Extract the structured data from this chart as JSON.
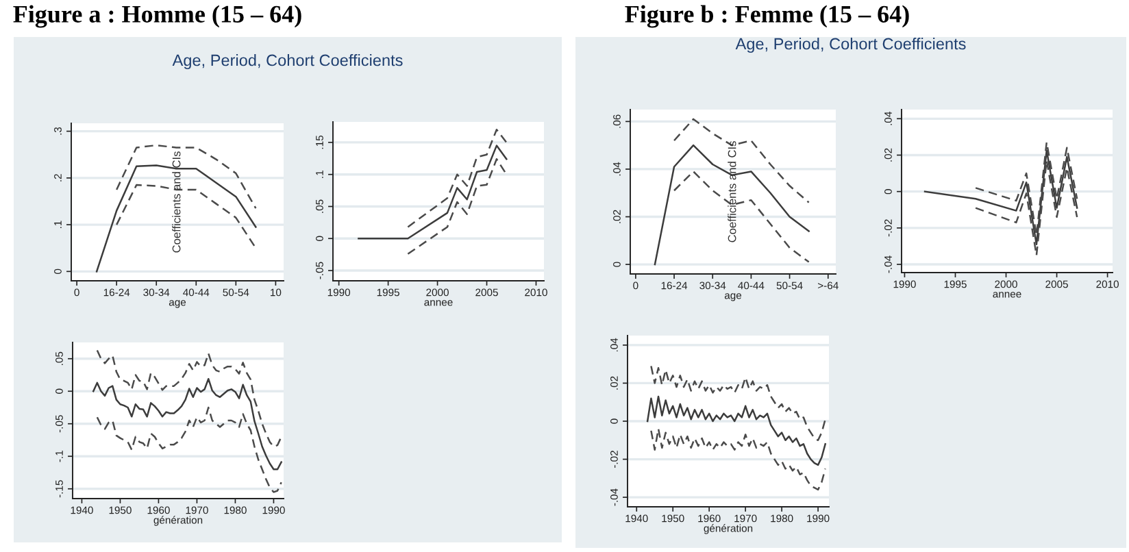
{
  "chart_data": [
    {
      "type": "line",
      "title": "Figure a : Homme (15 – 64)",
      "subtitle": "Age, Period, Cohort Coefficients",
      "xlabel": "age",
      "annotations": [
        "Coefficients and CIs"
      ],
      "grid": "y",
      "categories": [
        "0",
        null,
        "16-24",
        null,
        "30-34",
        null,
        "40-44",
        null,
        "50-54",
        null,
        "10"
      ],
      "ylim": [
        -0.02,
        0.317
      ],
      "yticks": [
        0,
        {
          "value": 0.1,
          "label": ".1"
        },
        {
          "value": 0.2,
          "label": ".2"
        },
        {
          "value": 0.3,
          "label": ".3"
        }
      ],
      "series": [
        {
          "color": "#3c3c3c",
          "line_style": "solid",
          "values": [
            null,
            0,
            0.13,
            0.225,
            0.227,
            0.22,
            0.22,
            0.19,
            0.16,
            0.095,
            null
          ]
        },
        {
          "color": "#4a4a4a",
          "line_style": "dashed",
          "values": [
            null,
            null,
            0.175,
            0.265,
            0.27,
            0.265,
            0.265,
            0.24,
            0.21,
            0.135,
            null
          ]
        },
        {
          "color": "#4a4a4a",
          "line_style": "dashed",
          "values": [
            null,
            null,
            0.1,
            0.185,
            0.183,
            0.175,
            0.175,
            0.145,
            0.115,
            0.05,
            null
          ]
        }
      ]
    },
    {
      "type": "line",
      "xlabel": "annee",
      "grid": "y",
      "xlim": [
        1989.4,
        2010.8
      ],
      "xticks": [
        1990,
        1995,
        2000,
        2005,
        2010
      ],
      "ylim": [
        -0.066,
        0.182
      ],
      "yticks": [
        {
          "value": -0.05,
          "label": "-.05"
        },
        0,
        {
          "value": 0.05,
          "label": ".05"
        },
        {
          "value": 0.1,
          "label": ".1"
        },
        {
          "value": 0.15,
          "label": ".15"
        }
      ],
      "series": [
        {
          "color": "#3c3c3c",
          "line_style": "solid",
          "x": [
            1992,
            1997,
            2001,
            2002,
            2003,
            2004,
            2005,
            2006,
            2007
          ],
          "values": [
            0,
            0,
            0.04,
            0.079,
            0.061,
            0.104,
            0.107,
            0.145,
            0.124
          ]
        },
        {
          "color": "#4a4a4a",
          "line_style": "dashed",
          "x": [
            1997,
            2001,
            2002,
            2003,
            2004,
            2005,
            2006,
            2007
          ],
          "values": [
            0.018,
            0.063,
            0.1,
            0.082,
            0.127,
            0.131,
            0.17,
            0.15
          ]
        },
        {
          "color": "#4a4a4a",
          "line_style": "dashed",
          "x": [
            1997,
            2001,
            2002,
            2003,
            2004,
            2005,
            2006,
            2007
          ],
          "values": [
            -0.024,
            0.018,
            0.057,
            0.038,
            0.082,
            0.084,
            0.124,
            0.1
          ]
        }
      ]
    },
    {
      "type": "line",
      "xlabel": "génération",
      "grid": "y",
      "xlim": [
        1937.6,
        1992.6
      ],
      "xticks": [
        1940,
        1950,
        1960,
        1970,
        1980,
        1990
      ],
      "ylim": [
        -0.165,
        0.075
      ],
      "yticks": [
        {
          "value": -0.15,
          "label": "-.15"
        },
        {
          "value": -0.1,
          "label": "-.1"
        },
        {
          "value": -0.05,
          "label": "-.05"
        },
        0,
        {
          "value": 0.05,
          "label": ".05"
        }
      ],
      "series": [
        {
          "color": "#3c3c3c",
          "line_style": "solid",
          "x": [
            1943,
            1944,
            1945,
            1946,
            1947,
            1948,
            1949,
            1950,
            1951,
            1952,
            1953,
            1954,
            1955,
            1956,
            1957,
            1958,
            1959,
            1960,
            1961,
            1962,
            1963,
            1964,
            1965,
            1966,
            1967,
            1968,
            1969,
            1970,
            1971,
            1972,
            1973,
            1974,
            1975,
            1976,
            1977,
            1978,
            1979,
            1980,
            1981,
            1982,
            1983,
            1984,
            1985,
            1986,
            1987,
            1988,
            1989,
            1990,
            1991,
            1992
          ],
          "values": [
            0,
            0.013,
            0,
            -0.007,
            0.005,
            0.008,
            -0.013,
            -0.02,
            -0.022,
            -0.025,
            -0.039,
            -0.02,
            -0.027,
            -0.028,
            -0.039,
            -0.018,
            -0.023,
            -0.03,
            -0.039,
            -0.032,
            -0.034,
            -0.034,
            -0.029,
            -0.023,
            -0.013,
            0.004,
            -0.009,
            0.005,
            -0.001,
            0.003,
            0.019,
            0.001,
            -0.006,
            -0.009,
            -0.004,
            0.001,
            0.003,
            -0.001,
            -0.011,
            0.01,
            -0.006,
            -0.016,
            -0.046,
            -0.065,
            -0.085,
            -0.099,
            -0.111,
            -0.12,
            -0.12,
            -0.109
          ]
        },
        {
          "color": "#4a4a4a",
          "line_style": "dashed",
          "x": [
            1944,
            1945,
            1946,
            1947,
            1948,
            1949,
            1950,
            1951,
            1952,
            1953,
            1954,
            1955,
            1956,
            1957,
            1958,
            1959,
            1960,
            1961,
            1962,
            1963,
            1964,
            1965,
            1966,
            1967,
            1968,
            1969,
            1970,
            1971,
            1972,
            1973,
            1974,
            1975,
            1976,
            1977,
            1978,
            1979,
            1980,
            1981,
            1982,
            1983,
            1984,
            1985,
            1986,
            1987,
            1988,
            1989,
            1990,
            1991,
            1992
          ],
          "values": [
            0.063,
            0.05,
            0.043,
            0.05,
            0.055,
            0.03,
            0.018,
            0.016,
            0.013,
            0.003,
            0.025,
            0.016,
            0.015,
            0.003,
            0.028,
            0.022,
            0.012,
            0.002,
            0.008,
            0.008,
            0.008,
            0.013,
            0.019,
            0.028,
            0.042,
            0.032,
            0.045,
            0.038,
            0.04,
            0.058,
            0.04,
            0.032,
            0.03,
            0.035,
            0.038,
            0.038,
            0.034,
            0.027,
            0.044,
            0.028,
            0.018,
            -0.013,
            -0.03,
            -0.05,
            -0.065,
            -0.078,
            -0.085,
            -0.083,
            -0.07
          ]
        },
        {
          "color": "#4a4a4a",
          "line_style": "dashed",
          "x": [
            1944,
            1945,
            1946,
            1947,
            1948,
            1949,
            1950,
            1951,
            1952,
            1953,
            1954,
            1955,
            1956,
            1957,
            1958,
            1959,
            1960,
            1961,
            1962,
            1963,
            1964,
            1965,
            1966,
            1967,
            1968,
            1969,
            1970,
            1971,
            1972,
            1973,
            1974,
            1975,
            1976,
            1977,
            1978,
            1979,
            1980,
            1981,
            1982,
            1983,
            1984,
            1985,
            1986,
            1987,
            1988,
            1989,
            1990,
            1991,
            1992
          ],
          "values": [
            -0.04,
            -0.052,
            -0.058,
            -0.048,
            -0.045,
            -0.068,
            -0.072,
            -0.075,
            -0.078,
            -0.09,
            -0.07,
            -0.078,
            -0.08,
            -0.088,
            -0.065,
            -0.07,
            -0.08,
            -0.088,
            -0.085,
            -0.082,
            -0.082,
            -0.078,
            -0.072,
            -0.062,
            -0.045,
            -0.055,
            -0.04,
            -0.048,
            -0.045,
            -0.025,
            -0.045,
            -0.05,
            -0.055,
            -0.05,
            -0.045,
            -0.045,
            -0.048,
            -0.055,
            -0.035,
            -0.05,
            -0.06,
            -0.085,
            -0.105,
            -0.12,
            -0.135,
            -0.148,
            -0.155,
            -0.153,
            -0.14
          ]
        }
      ]
    },
    {
      "type": "line",
      "title": "Figure b : Femme (15 – 64)",
      "subtitle": "Age, Period, Cohort Coefficients",
      "xlabel": "age",
      "annotations": [
        "Coefficients and CIs"
      ],
      "grid": "y",
      "categories": [
        "0",
        null,
        "16-24",
        null,
        "30-34",
        null,
        "40-44",
        null,
        "50-54",
        null,
        ">-64"
      ],
      "ylim": [
        -0.004,
        0.065
      ],
      "yticks": [
        0,
        {
          "value": 0.02,
          "label": ".02"
        },
        {
          "value": 0.04,
          "label": ".04"
        },
        {
          "value": 0.06,
          "label": ".06"
        }
      ],
      "series": [
        {
          "color": "#3c3c3c",
          "line_style": "solid",
          "values": [
            null,
            0,
            0.041,
            0.05,
            0.042,
            0.0375,
            0.039,
            0.03,
            0.02,
            0.014,
            null
          ]
        },
        {
          "color": "#4a4a4a",
          "line_style": "dashed",
          "values": [
            null,
            null,
            0.052,
            0.061,
            0.055,
            0.05,
            0.052,
            0.042,
            0.033,
            0.026,
            null
          ]
        },
        {
          "color": "#4a4a4a",
          "line_style": "dashed",
          "values": [
            null,
            null,
            0.031,
            0.039,
            0.031,
            0.025,
            0.027,
            0.017,
            0.007,
            0.001,
            null
          ]
        }
      ]
    },
    {
      "type": "line",
      "xlabel": "annee",
      "grid": "y",
      "xlim": [
        1989.7,
        2010.5
      ],
      "xticks": [
        1990,
        1995,
        2000,
        2005,
        2010
      ],
      "ylim": [
        -0.0445,
        0.045
      ],
      "yticks": [
        {
          "value": -0.04,
          "label": "-.04"
        },
        {
          "value": -0.02,
          "label": "-.02"
        },
        0,
        {
          "value": 0.02,
          "label": ".02"
        },
        {
          "value": 0.04,
          "label": ".04"
        }
      ],
      "series": [
        {
          "color": "#3c3c3c",
          "line_style": "solid",
          "x": [
            1992,
            1997,
            2001,
            2002,
            2003,
            2004,
            2005,
            2006,
            2007
          ],
          "values": [
            0,
            -0.004,
            -0.0105,
            0.005,
            -0.029,
            0.0225,
            -0.009,
            0.019,
            -0.009
          ]
        },
        {
          "color": "#4a4a4a",
          "line_style": "dashed",
          "x": [
            1997,
            2001,
            2002,
            2003,
            2004,
            2005,
            2006,
            2007
          ],
          "values": [
            0.002,
            -0.005,
            0.01,
            -0.024,
            0.027,
            -0.004,
            0.024,
            -0.004
          ]
        },
        {
          "color": "#4a4a4a",
          "line_style": "dashed",
          "x": [
            1997,
            2001,
            2002,
            2003,
            2004,
            2005,
            2006,
            2007
          ],
          "values": [
            -0.009,
            -0.017,
            -0.001,
            -0.035,
            0.017,
            -0.014,
            0.013,
            -0.014
          ]
        }
      ]
    },
    {
      "type": "line",
      "xlabel": "génération",
      "grid": "y",
      "xlim": [
        1937.5,
        1993
      ],
      "xticks": [
        1940,
        1950,
        1960,
        1970,
        1980,
        1990
      ],
      "ylim": [
        -0.045,
        0.045
      ],
      "yticks": [
        {
          "value": -0.04,
          "label": "-.04"
        },
        {
          "value": -0.02,
          "label": "-.02"
        },
        0,
        {
          "value": 0.02,
          "label": ".02"
        },
        {
          "value": 0.04,
          "label": ".04"
        }
      ],
      "series": [
        {
          "color": "#3c3c3c",
          "line_style": "solid",
          "x": [
            1943,
            1944,
            1945,
            1946,
            1947,
            1948,
            1949,
            1950,
            1951,
            1952,
            1953,
            1954,
            1955,
            1956,
            1957,
            1958,
            1959,
            1960,
            1961,
            1962,
            1963,
            1964,
            1965,
            1966,
            1967,
            1968,
            1969,
            1970,
            1971,
            1972,
            1973,
            1974,
            1975,
            1976,
            1977,
            1978,
            1979,
            1980,
            1981,
            1982,
            1983,
            1984,
            1985,
            1986,
            1987,
            1988,
            1989,
            1990,
            1991,
            1992
          ],
          "values": [
            0,
            0.012,
            0.002,
            0.013,
            0.003,
            0.011,
            0.004,
            0.008,
            0.002,
            0.009,
            0.003,
            0.007,
            0.001,
            0.006,
            0.002,
            0.006,
            0.001,
            0.004,
            0,
            0.003,
            0.001,
            0.004,
            0.002,
            0.003,
            0,
            0.004,
            0.002,
            0.008,
            0.002,
            0.006,
            0.001,
            0.003,
            0.002,
            0.004,
            -0.002,
            -0.005,
            -0.008,
            -0.006,
            -0.01,
            -0.008,
            -0.011,
            -0.009,
            -0.013,
            -0.012,
            -0.017,
            -0.02,
            -0.022,
            -0.023,
            -0.019,
            -0.012
          ]
        },
        {
          "color": "#4a4a4a",
          "line_style": "dashed",
          "x": [
            1944,
            1945,
            1946,
            1947,
            1948,
            1949,
            1950,
            1951,
            1952,
            1953,
            1954,
            1955,
            1956,
            1957,
            1958,
            1959,
            1960,
            1961,
            1962,
            1963,
            1964,
            1965,
            1966,
            1967,
            1968,
            1969,
            1970,
            1971,
            1972,
            1973,
            1974,
            1975,
            1976,
            1977,
            1978,
            1979,
            1980,
            1981,
            1982,
            1983,
            1984,
            1985,
            1986,
            1987,
            1988,
            1989,
            1990,
            1991,
            1992
          ],
          "values": [
            0.029,
            0.02,
            0.028,
            0.019,
            0.027,
            0.02,
            0.024,
            0.018,
            0.024,
            0.018,
            0.022,
            0.016,
            0.021,
            0.017,
            0.021,
            0.016,
            0.019,
            0.015,
            0.018,
            0.016,
            0.019,
            0.017,
            0.018,
            0.015,
            0.019,
            0.017,
            0.023,
            0.017,
            0.021,
            0.016,
            0.018,
            0.017,
            0.019,
            0.013,
            0.01,
            0.007,
            0.009,
            0.005,
            0.007,
            0.004,
            0.005,
            0.001,
            0.002,
            -0.003,
            -0.006,
            -0.009,
            -0.01,
            -0.006,
            0.001
          ]
        },
        {
          "color": "#4a4a4a",
          "line_style": "dashed",
          "x": [
            1944,
            1945,
            1946,
            1947,
            1948,
            1949,
            1950,
            1951,
            1952,
            1953,
            1954,
            1955,
            1956,
            1957,
            1958,
            1959,
            1960,
            1961,
            1962,
            1963,
            1964,
            1965,
            1966,
            1967,
            1968,
            1969,
            1970,
            1971,
            1972,
            1973,
            1974,
            1975,
            1976,
            1977,
            1978,
            1979,
            1980,
            1981,
            1982,
            1983,
            1984,
            1985,
            1986,
            1987,
            1988,
            1989,
            1990,
            1991,
            1992
          ],
          "values": [
            -0.005,
            -0.015,
            -0.004,
            -0.014,
            -0.006,
            -0.012,
            -0.008,
            -0.014,
            -0.007,
            -0.012,
            -0.008,
            -0.014,
            -0.009,
            -0.013,
            -0.009,
            -0.014,
            -0.011,
            -0.015,
            -0.012,
            -0.014,
            -0.011,
            -0.013,
            -0.012,
            -0.015,
            -0.011,
            -0.013,
            -0.007,
            -0.013,
            -0.009,
            -0.014,
            -0.012,
            -0.013,
            -0.011,
            -0.017,
            -0.02,
            -0.023,
            -0.021,
            -0.025,
            -0.023,
            -0.026,
            -0.024,
            -0.028,
            -0.027,
            -0.031,
            -0.034,
            -0.035,
            -0.036,
            -0.032,
            -0.025
          ]
        }
      ]
    }
  ]
}
